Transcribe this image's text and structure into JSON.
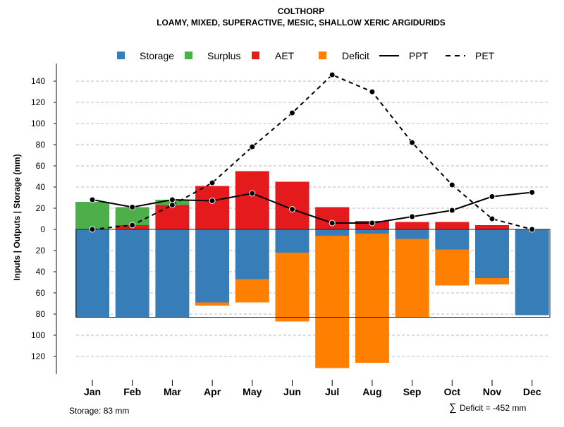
{
  "chart_data": {
    "type": "bar",
    "title": "COLTHORP",
    "subtitle": "LOAMY, MIXED, SUPERACTIVE, MESIC, SHALLOW XERIC ARGIDURIDS",
    "ylabel": "Inputs | Outputs | Storage    (mm)",
    "ylim": [
      -130,
      150
    ],
    "yticks": [
      140,
      120,
      100,
      80,
      60,
      40,
      20,
      0,
      -20,
      -40,
      -60,
      -80,
      -100,
      -120
    ],
    "ytick_labels": [
      "140",
      "120",
      "100",
      "80",
      "60",
      "40",
      "20",
      "0",
      "20",
      "40",
      "60",
      "80",
      "100",
      "120"
    ],
    "grid": true,
    "legend_position": "top",
    "categories": [
      "Jan",
      "Feb",
      "Mar",
      "Apr",
      "May",
      "Jun",
      "Jul",
      "Aug",
      "Sep",
      "Oct",
      "Nov",
      "Dec"
    ],
    "series": [
      {
        "name": "Storage",
        "kind": "bar-negative",
        "color": "#377EB8",
        "values": [
          83,
          83,
          83,
          69,
          47,
          22,
          6,
          4,
          9,
          19,
          46,
          81
        ]
      },
      {
        "name": "Surplus",
        "kind": "bar-positive",
        "color": "#4DAF4A",
        "values": [
          26,
          17,
          5,
          0,
          0,
          0,
          0,
          0,
          0,
          0,
          0,
          0
        ]
      },
      {
        "name": "AET",
        "kind": "bar-positive",
        "color": "#E41A1C",
        "values": [
          0,
          4,
          23,
          41,
          55,
          45,
          21,
          8,
          7,
          7,
          4,
          0
        ]
      },
      {
        "name": "Deficit",
        "kind": "bar-negative",
        "color": "#FF7F00",
        "values": [
          0,
          0,
          0,
          3,
          22,
          65,
          125,
          122,
          74,
          34,
          6,
          0
        ]
      },
      {
        "name": "PPT",
        "kind": "line-solid",
        "color": "#000000",
        "values": [
          28,
          21,
          28,
          27,
          34,
          19,
          6,
          6,
          12,
          18,
          31,
          35
        ]
      },
      {
        "name": "PET",
        "kind": "line-dashed",
        "color": "#000000",
        "values": [
          0,
          4,
          23,
          44,
          78,
          110,
          146,
          130,
          82,
          42,
          10,
          0
        ]
      }
    ],
    "storage_capacity": 83,
    "storage_note": "Storage: 83 mm",
    "deficit_note": "Deficit = -452 mm",
    "deficit_symbol": "∑"
  }
}
